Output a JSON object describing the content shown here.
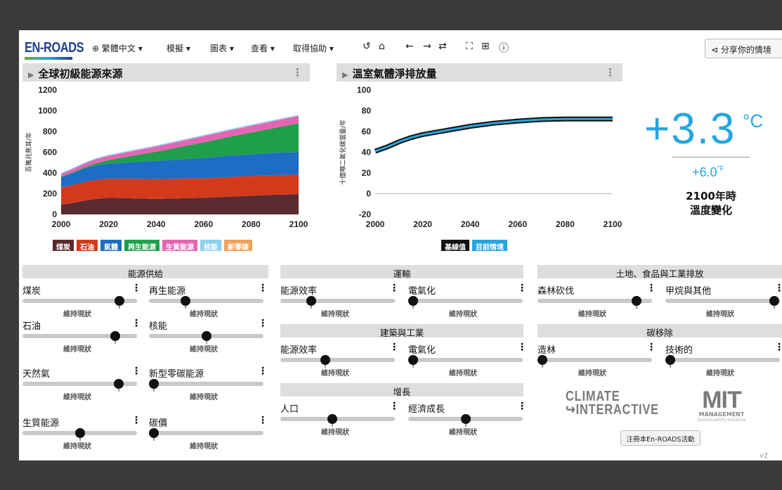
{
  "app": {
    "logo": "EN-ROADS",
    "version": "v2"
  },
  "menu": {
    "language": "繁體中文 ▾",
    "simulate": "模擬 ▾",
    "graphs": "圖表 ▾",
    "view": "查看 ▾",
    "help": "取得協助 ▾"
  },
  "share_label": "分享你的情境",
  "graph_left": {
    "title": "全球初級能源來源",
    "ylabel": "百萬兆焦耳/年",
    "legend": [
      {
        "label": "煤炭",
        "color": "#5b2a2e"
      },
      {
        "label": "石油",
        "color": "#d33a1c"
      },
      {
        "label": "氣體",
        "color": "#1d6dc4"
      },
      {
        "label": "再生能源",
        "color": "#1f9f4b"
      },
      {
        "label": "生質能源",
        "color": "#e565b3"
      },
      {
        "label": "核能",
        "color": "#8fd0ef"
      },
      {
        "label": "新零碳",
        "color": "#f0a15a"
      }
    ]
  },
  "graph_right": {
    "title": "溫室氣體淨排放量",
    "ylabel": "十億噸二氧化碳當量/年",
    "legend": [
      {
        "label": "基線值",
        "color": "#111111"
      },
      {
        "label": "目前情境",
        "color": "#27a5dd"
      }
    ]
  },
  "chart_data": [
    {
      "type": "area",
      "title": "全球初級能源來源",
      "ylabel": "百萬兆焦耳/年",
      "x": [
        2000,
        2005,
        2010,
        2015,
        2020,
        2030,
        2040,
        2050,
        2060,
        2070,
        2080,
        2090,
        2100
      ],
      "ylim": [
        0,
        1200
      ],
      "yticks": [
        0,
        200,
        400,
        600,
        800,
        1000,
        1200
      ],
      "xticks": [
        2000,
        2020,
        2040,
        2060,
        2080,
        2100
      ],
      "series": [
        {
          "name": "煤炭",
          "color": "#5b2a2e",
          "values": [
            95,
            110,
            135,
            150,
            160,
            155,
            150,
            155,
            160,
            170,
            180,
            190,
            195
          ]
        },
        {
          "name": "石油",
          "color": "#d33a1c",
          "values": [
            165,
            175,
            180,
            185,
            185,
            190,
            190,
            190,
            190,
            190,
            190,
            190,
            190
          ]
        },
        {
          "name": "氣體",
          "color": "#1d6dc4",
          "values": [
            100,
            115,
            130,
            140,
            145,
            160,
            175,
            185,
            195,
            205,
            210,
            215,
            215
          ]
        },
        {
          "name": "再生能源",
          "color": "#1f9f4b",
          "values": [
            5,
            8,
            12,
            20,
            35,
            60,
            90,
            120,
            150,
            180,
            210,
            240,
            280
          ]
        },
        {
          "name": "生質能源",
          "color": "#e565b3",
          "values": [
            25,
            30,
            35,
            40,
            40,
            45,
            50,
            55,
            60,
            62,
            65,
            68,
            70
          ]
        },
        {
          "name": "核能",
          "color": "#8fd0ef",
          "values": [
            10,
            10,
            10,
            10,
            10,
            10,
            10,
            10,
            10,
            10,
            10,
            10,
            10
          ]
        },
        {
          "name": "新零碳",
          "color": "#f0a15a",
          "values": [
            0,
            0,
            0,
            0,
            0,
            0,
            0,
            0,
            0,
            0,
            0,
            0,
            0
          ]
        }
      ]
    },
    {
      "type": "line",
      "title": "溫室氣體淨排放量",
      "ylabel": "十億噸二氧化碳當量/年",
      "x": [
        2000,
        2005,
        2010,
        2015,
        2020,
        2025,
        2030,
        2040,
        2050,
        2060,
        2070,
        2080,
        2090,
        2100
      ],
      "ylim": [
        -20,
        100
      ],
      "yticks": [
        -20,
        0,
        20,
        40,
        60,
        80,
        100
      ],
      "xticks": [
        2000,
        2020,
        2040,
        2060,
        2080,
        2100
      ],
      "series": [
        {
          "name": "基線值",
          "color": "#111111",
          "values": [
            41,
            45,
            50,
            54,
            57,
            59,
            61,
            65,
            68,
            70,
            71.5,
            72,
            72,
            72
          ]
        },
        {
          "name": "目前情境",
          "color": "#27a5dd",
          "values": [
            41,
            45,
            50,
            54,
            57,
            59,
            61,
            65,
            68,
            70,
            71.5,
            72,
            72,
            72
          ]
        }
      ]
    }
  ],
  "temperature": {
    "celsius": "+3.3",
    "c_unit": "°C",
    "fahrenheit": "+6.0",
    "f_unit": "°F",
    "label_line1": "2100年時",
    "label_line2": "溫度變化"
  },
  "sections": {
    "energy_supply": "能源供給",
    "transport": "運輸",
    "buildings": "建築與工業",
    "growth": "增長",
    "land": "土地、食品與工業排放",
    "carbon_removal": "碳移除"
  },
  "sliders": {
    "coal": {
      "label": "煤炭",
      "status": "維持現狀",
      "value": 0.88
    },
    "renewables": {
      "label": "再生能源",
      "status": "維持現狀",
      "value": 0.3
    },
    "oil": {
      "label": "石油",
      "status": "維持現狀",
      "value": 0.84
    },
    "nuclear": {
      "label": "核能",
      "status": "維持現狀",
      "value": 0.5
    },
    "gas": {
      "label": "天然氣",
      "status": "維持現狀",
      "value": 0.87
    },
    "new_zero_carbon": {
      "label": "新型零碳能源",
      "status": "維持現狀",
      "value": 0.0
    },
    "bioenergy": {
      "label": "生質能源",
      "status": "維持現狀",
      "value": 0.5
    },
    "carbon_price": {
      "label": "碳價",
      "status": "維持現狀",
      "value": 0.0
    },
    "transport_efficiency": {
      "label": "能源效率",
      "status": "維持現狀",
      "value": 0.25
    },
    "transport_electrification": {
      "label": "電氣化",
      "status": "維持現狀",
      "value": 0.0
    },
    "building_efficiency": {
      "label": "能源效率",
      "status": "維持現狀",
      "value": 0.38
    },
    "building_electrification": {
      "label": "電氣化",
      "status": "維持現狀",
      "value": 0.0
    },
    "population": {
      "label": "人口",
      "status": "維持現狀",
      "value": 0.45
    },
    "economic_growth": {
      "label": "經濟成長",
      "status": "維持現狀",
      "value": 0.5
    },
    "deforestation": {
      "label": "森林砍伐",
      "status": "維持現狀",
      "value": 0.9
    },
    "methane_other": {
      "label": "甲烷與其他",
      "status": "維持現狀",
      "value": 0.99
    },
    "afforestation": {
      "label": "造林",
      "status": "維持現狀",
      "value": 0.0
    },
    "technological": {
      "label": "技術的",
      "status": "維持現狀",
      "value": 0.0
    }
  },
  "logos": {
    "climate_interactive_1": "CLIMATE",
    "climate_interactive_2": "INTERACTIVE",
    "mit": "MIT",
    "mit_sub": "MANAGEMENT",
    "mit_sub2": "Sustainability Initiative"
  },
  "register_label": "注冊本En-ROADS活動"
}
